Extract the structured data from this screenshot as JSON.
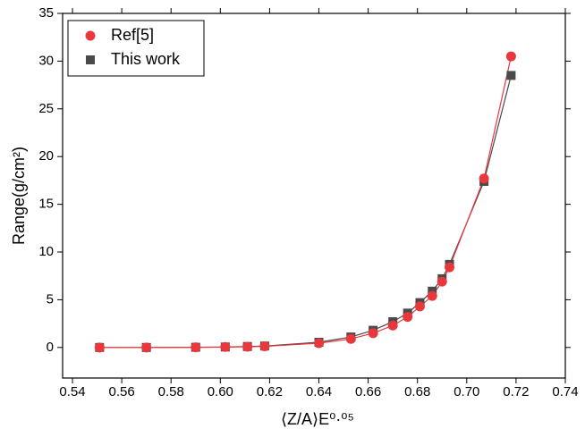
{
  "chart_data": {
    "type": "scatter",
    "x_label": "⟨Z/A⟩E⁰·⁰⁵",
    "y_label": "Range(g/cm²)",
    "x": [
      0.551,
      0.57,
      0.59,
      0.602,
      0.611,
      0.618,
      0.64,
      0.653,
      0.662,
      0.67,
      0.676,
      0.681,
      0.686,
      0.69,
      0.693,
      0.707,
      0.718
    ],
    "series": [
      {
        "name": "Ref[5]",
        "color": "#e8383d",
        "marker": "circle",
        "values": [
          0,
          0,
          0.02,
          0.05,
          0.08,
          0.12,
          0.45,
          0.9,
          1.5,
          2.3,
          3.2,
          4.3,
          5.4,
          6.9,
          8.4,
          17.7,
          30.5
        ]
      },
      {
        "name": "This work",
        "color": "#4a4a4a",
        "marker": "square",
        "values": [
          0,
          0,
          0.02,
          0.05,
          0.1,
          0.15,
          0.55,
          1.1,
          1.8,
          2.7,
          3.6,
          4.7,
          5.9,
          7.2,
          8.7,
          17.4,
          28.5
        ]
      }
    ],
    "xlim": [
      0.536,
      0.74
    ],
    "ylim": [
      -3.2,
      35
    ],
    "xticks": [
      0.54,
      0.56,
      0.58,
      {
        "value": 0.6,
        "label": "0.60"
      },
      0.62,
      0.64,
      0.66,
      0.68,
      {
        "value": 0.7,
        "label": "0.70"
      },
      0.72,
      0.74
    ],
    "yticks": [
      0,
      5,
      10,
      15,
      20,
      25,
      30,
      35
    ],
    "legend": "upper left"
  }
}
